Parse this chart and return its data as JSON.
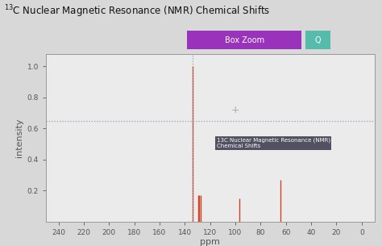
{
  "title": "$^{13}$C Nuclear Magnetic Resonance (NMR) Chemical Shifts",
  "xlabel": "ppm",
  "ylabel": "intensity",
  "xlim": [
    250,
    -10
  ],
  "ylim": [
    0,
    1.08
  ],
  "yticks": [
    0.2,
    0.4,
    0.6,
    0.8,
    1.0
  ],
  "xticks": [
    240,
    220,
    200,
    180,
    160,
    140,
    120,
    100,
    80,
    60,
    40,
    20,
    0
  ],
  "outer_bg": "#d8d8d8",
  "plot_bg_color": "#ebebeb",
  "peaks": [
    {
      "ppm": 134.0,
      "intensity": 1.0
    },
    {
      "ppm": 129.5,
      "intensity": 0.17
    },
    {
      "ppm": 128.5,
      "intensity": 0.17
    },
    {
      "ppm": 127.5,
      "intensity": 0.17
    },
    {
      "ppm": 97.0,
      "intensity": 0.15
    },
    {
      "ppm": 64.0,
      "intensity": 0.27
    }
  ],
  "peak_color": "#cc4422",
  "dashed_line_y": 0.65,
  "dashed_line_color": "#9999bb",
  "dashed_line_x": 134.0,
  "tooltip_ppm": 115,
  "tooltip_intensity": 0.54,
  "tooltip_text": "13C Nuclear Magnetic Resonance (NMR)\nChemical Shifts",
  "tooltip_bg": "#444455",
  "tooltip_fg": "#ffffff",
  "box_zoom_label": "Box Zoom",
  "box_zoom_color": "#9933bb",
  "plus_ppm": 100,
  "plus_intensity": 0.72,
  "plus_color": "#aaaaaa"
}
